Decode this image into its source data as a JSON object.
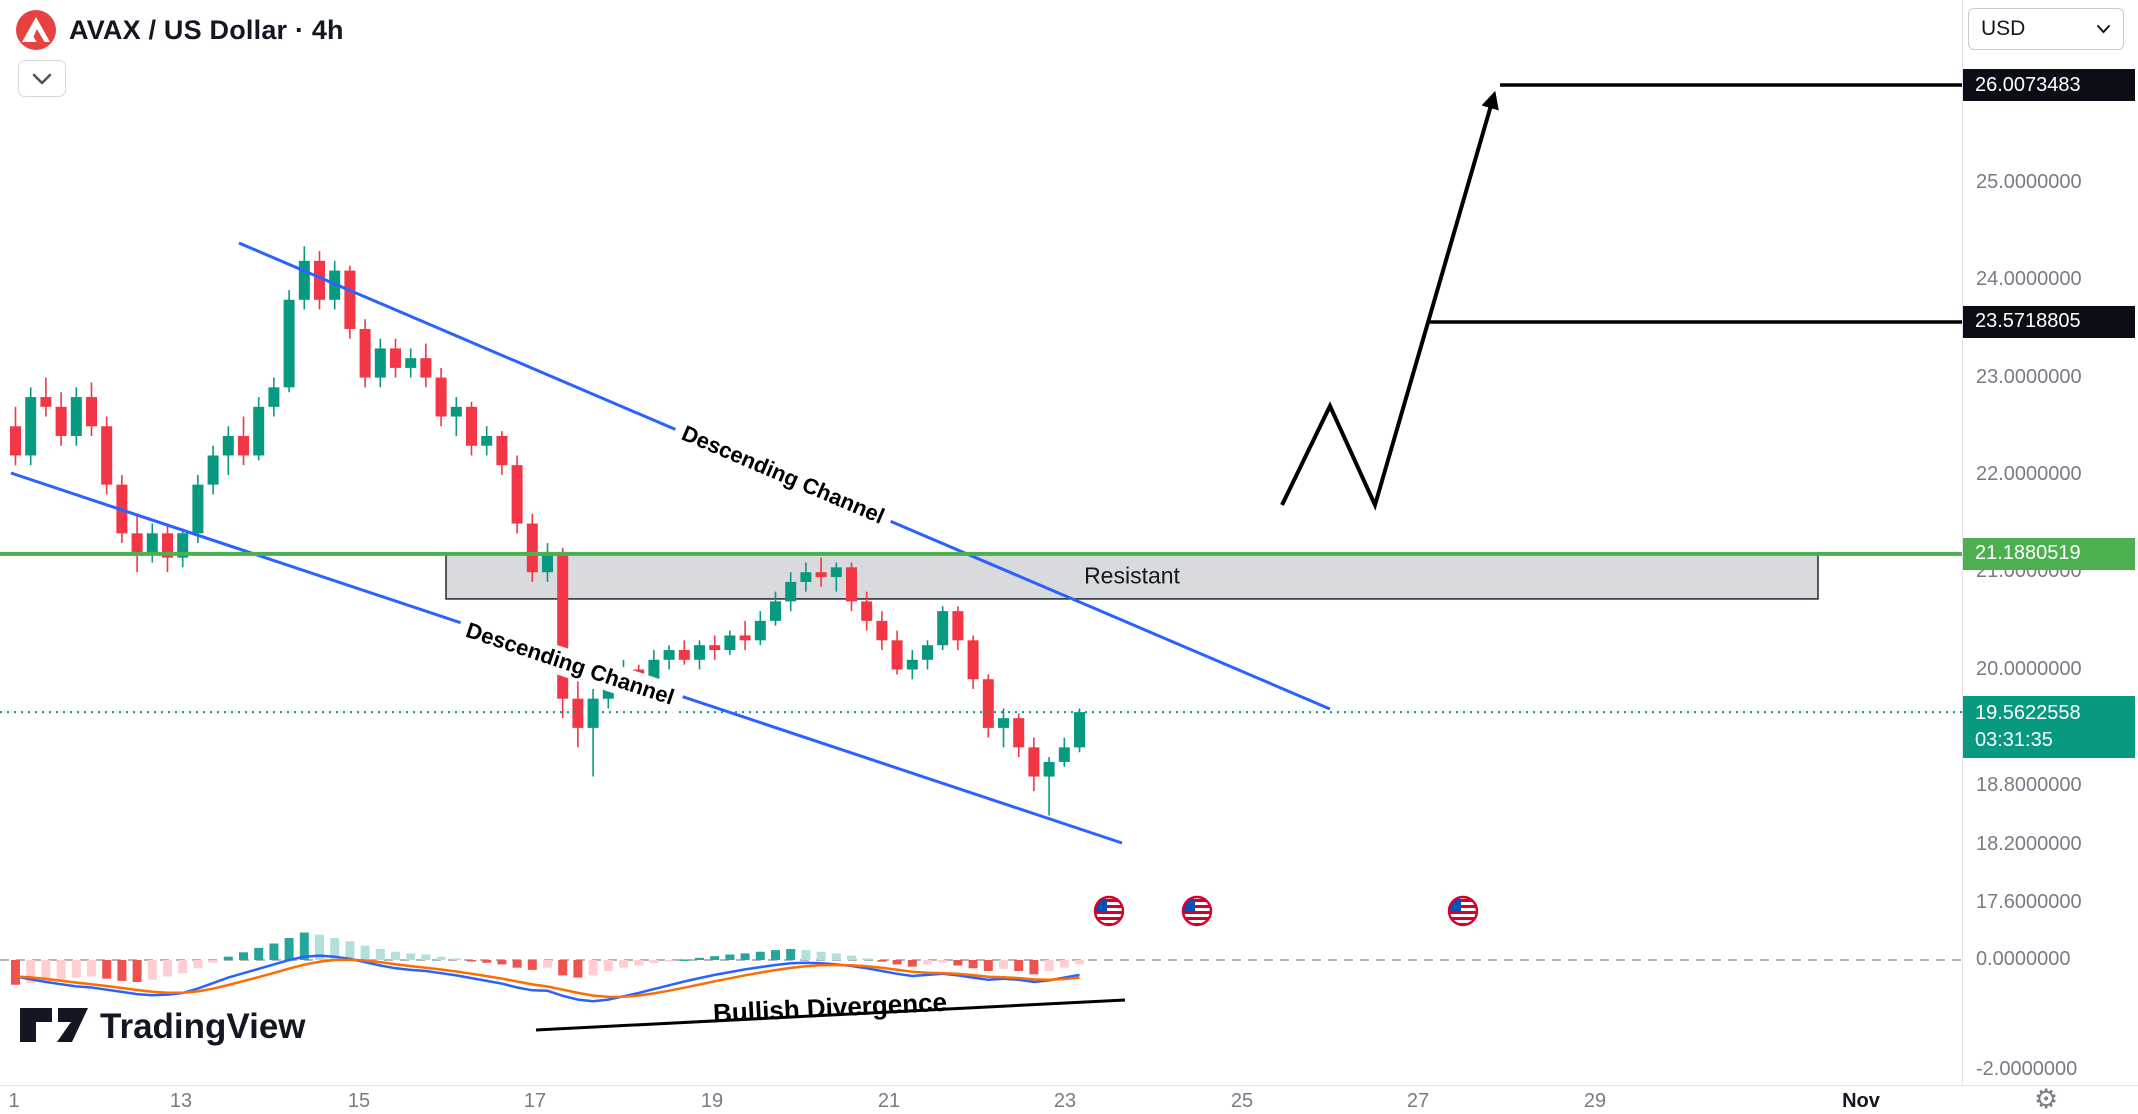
{
  "header": {
    "symbol_title": "AVAX / US Dollar · 4h",
    "currency_selector": "USD"
  },
  "watermark": {
    "text": "TradingView"
  },
  "annotations": {
    "resistance_zone_label": "Resistant",
    "channel_label_upper": "Descending Channel",
    "channel_label_lower": "Descending Channel",
    "divergence_label": "Bullish Divergence"
  },
  "price_labels": {
    "target_high": "26.0073483",
    "target_mid": "23.5718805",
    "resistance_line": "21.1880519",
    "current_price": "19.5622558",
    "countdown": "03:31:35"
  },
  "price_axis_ticks": [
    "25.0000000",
    "24.0000000",
    "23.0000000",
    "22.0000000",
    "21.0000000",
    "20.0000000",
    "18.8000000",
    "18.2000000",
    "17.6000000"
  ],
  "indicator_axis_ticks": [
    "0.0000000",
    "-2.0000000"
  ],
  "time_axis_ticks": [
    "1",
    "13",
    "15",
    "17",
    "19",
    "21",
    "23",
    "25",
    "27",
    "29",
    "Nov"
  ],
  "event_icons": [
    "us-flag",
    "us-flag",
    "us-flag"
  ],
  "colors": {
    "candle_up": "#089981",
    "candle_down": "#f23645",
    "resistance_green": "#4caf50",
    "current_teal": "#089981",
    "channel_blue": "#2962ff",
    "hist_up_strong": "#26a69a",
    "hist_up_weak": "#b2dfdb",
    "hist_down_strong": "#ef5350",
    "hist_down_weak": "#ffcdd2",
    "macd_line": "#2962ff",
    "signal_line": "#ff6d00",
    "axis_text": "#787b86"
  },
  "chart_data": {
    "type": "candlestick",
    "symbol": "AVAX/USD",
    "interval": "4h",
    "title": "AVAX / US Dollar · 4h",
    "price_axis_visible_range": [
      17.6,
      26.3
    ],
    "levels": {
      "target_high": 26.0073483,
      "target_mid": 23.5718805,
      "resistance": 21.1880519,
      "current": 19.5622558
    },
    "candles": [
      [
        22.5,
        22.7,
        22.1,
        22.2
      ],
      [
        22.2,
        22.9,
        22.1,
        22.8
      ],
      [
        22.8,
        23.0,
        22.6,
        22.7
      ],
      [
        22.7,
        22.85,
        22.3,
        22.4
      ],
      [
        22.4,
        22.9,
        22.3,
        22.8
      ],
      [
        22.8,
        22.95,
        22.4,
        22.5
      ],
      [
        22.5,
        22.6,
        21.8,
        21.9
      ],
      [
        21.9,
        22.0,
        21.3,
        21.4
      ],
      [
        21.4,
        21.6,
        21.0,
        21.2
      ],
      [
        21.2,
        21.5,
        21.1,
        21.4
      ],
      [
        21.4,
        21.5,
        21.0,
        21.15
      ],
      [
        21.15,
        21.45,
        21.05,
        21.4
      ],
      [
        21.4,
        22.0,
        21.3,
        21.9
      ],
      [
        21.9,
        22.3,
        21.8,
        22.2
      ],
      [
        22.2,
        22.5,
        22.0,
        22.4
      ],
      [
        22.4,
        22.6,
        22.1,
        22.2
      ],
      [
        22.2,
        22.8,
        22.15,
        22.7
      ],
      [
        22.7,
        23.0,
        22.6,
        22.9
      ],
      [
        22.9,
        23.9,
        22.85,
        23.8
      ],
      [
        23.8,
        24.35,
        23.7,
        24.2
      ],
      [
        24.2,
        24.3,
        23.7,
        23.8
      ],
      [
        23.8,
        24.2,
        23.7,
        24.1
      ],
      [
        24.1,
        24.15,
        23.4,
        23.5
      ],
      [
        23.5,
        23.6,
        22.9,
        23.0
      ],
      [
        23.0,
        23.4,
        22.9,
        23.3
      ],
      [
        23.3,
        23.4,
        23.0,
        23.1
      ],
      [
        23.1,
        23.3,
        23.0,
        23.2
      ],
      [
        23.2,
        23.35,
        22.9,
        23.0
      ],
      [
        23.0,
        23.1,
        22.5,
        22.6
      ],
      [
        22.6,
        22.8,
        22.4,
        22.7
      ],
      [
        22.7,
        22.75,
        22.2,
        22.3
      ],
      [
        22.3,
        22.5,
        22.2,
        22.4
      ],
      [
        22.4,
        22.45,
        22.0,
        22.1
      ],
      [
        22.1,
        22.2,
        21.4,
        21.5
      ],
      [
        21.5,
        21.6,
        20.9,
        21.0
      ],
      [
        21.0,
        21.3,
        20.9,
        21.2
      ],
      [
        21.2,
        21.25,
        19.5,
        19.7
      ],
      [
        19.7,
        19.9,
        19.2,
        19.4
      ],
      [
        19.4,
        19.8,
        18.9,
        19.7
      ],
      [
        19.7,
        20.0,
        19.6,
        19.9
      ],
      [
        19.9,
        20.1,
        19.8,
        20.0
      ],
      [
        20.0,
        20.05,
        19.8,
        19.9
      ],
      [
        19.9,
        20.2,
        19.85,
        20.1
      ],
      [
        20.1,
        20.25,
        20.0,
        20.2
      ],
      [
        20.2,
        20.3,
        20.05,
        20.1
      ],
      [
        20.1,
        20.3,
        20.0,
        20.25
      ],
      [
        20.25,
        20.35,
        20.1,
        20.2
      ],
      [
        20.2,
        20.4,
        20.15,
        20.35
      ],
      [
        20.35,
        20.5,
        20.2,
        20.3
      ],
      [
        20.3,
        20.6,
        20.25,
        20.5
      ],
      [
        20.5,
        20.8,
        20.45,
        20.7
      ],
      [
        20.7,
        21.0,
        20.6,
        20.9
      ],
      [
        20.9,
        21.1,
        20.8,
        21.0
      ],
      [
        21.0,
        21.15,
        20.85,
        20.95
      ],
      [
        20.95,
        21.1,
        20.8,
        21.05
      ],
      [
        21.05,
        21.1,
        20.6,
        20.7
      ],
      [
        20.7,
        20.8,
        20.4,
        20.5
      ],
      [
        20.5,
        20.6,
        20.2,
        20.3
      ],
      [
        20.3,
        20.4,
        19.95,
        20.0
      ],
      [
        20.0,
        20.2,
        19.9,
        20.1
      ],
      [
        20.1,
        20.3,
        20.0,
        20.25
      ],
      [
        20.25,
        20.65,
        20.2,
        20.6
      ],
      [
        20.6,
        20.65,
        20.2,
        20.3
      ],
      [
        20.3,
        20.35,
        19.8,
        19.9
      ],
      [
        19.9,
        19.95,
        19.3,
        19.4
      ],
      [
        19.4,
        19.6,
        19.2,
        19.5
      ],
      [
        19.5,
        19.55,
        19.1,
        19.2
      ],
      [
        19.2,
        19.3,
        18.75,
        18.9
      ],
      [
        18.9,
        19.1,
        18.5,
        19.05
      ],
      [
        19.05,
        19.3,
        19.0,
        19.2
      ],
      [
        19.2,
        19.6,
        19.15,
        19.5622558
      ]
    ],
    "indicator": {
      "type": "macd",
      "zero_level": 0,
      "histogram": [
        -0.45,
        -0.42,
        -0.4,
        -0.36,
        -0.32,
        -0.3,
        -0.34,
        -0.38,
        -0.4,
        -0.36,
        -0.3,
        -0.24,
        -0.15,
        -0.05,
        0.06,
        0.14,
        0.22,
        0.3,
        0.4,
        0.5,
        0.46,
        0.4,
        0.34,
        0.26,
        0.2,
        0.15,
        0.12,
        0.1,
        0.06,
        0.03,
        -0.02,
        -0.05,
        -0.08,
        -0.14,
        -0.18,
        -0.14,
        -0.28,
        -0.32,
        -0.28,
        -0.2,
        -0.14,
        -0.1,
        -0.06,
        -0.03,
        0.01,
        0.04,
        0.07,
        0.1,
        0.12,
        0.15,
        0.18,
        0.2,
        0.18,
        0.15,
        0.12,
        0.08,
        0.03,
        -0.03,
        -0.08,
        -0.12,
        -0.08,
        -0.05,
        -0.1,
        -0.15,
        -0.2,
        -0.16,
        -0.2,
        -0.26,
        -0.2,
        -0.14,
        -0.08
      ],
      "macd": [
        -0.3,
        -0.35,
        -0.4,
        -0.44,
        -0.48,
        -0.5,
        -0.54,
        -0.58,
        -0.62,
        -0.64,
        -0.63,
        -0.6,
        -0.52,
        -0.42,
        -0.32,
        -0.24,
        -0.16,
        -0.08,
        0.0,
        0.06,
        0.08,
        0.06,
        0.02,
        -0.04,
        -0.1,
        -0.15,
        -0.18,
        -0.2,
        -0.24,
        -0.28,
        -0.33,
        -0.38,
        -0.43,
        -0.5,
        -0.55,
        -0.56,
        -0.65,
        -0.72,
        -0.75,
        -0.72,
        -0.66,
        -0.6,
        -0.53,
        -0.46,
        -0.39,
        -0.33,
        -0.27,
        -0.22,
        -0.17,
        -0.13,
        -0.09,
        -0.06,
        -0.05,
        -0.06,
        -0.08,
        -0.11,
        -0.15,
        -0.2,
        -0.25,
        -0.29,
        -0.27,
        -0.25,
        -0.28,
        -0.32,
        -0.36,
        -0.34,
        -0.36,
        -0.4,
        -0.37,
        -0.32,
        -0.27
      ]
    }
  }
}
